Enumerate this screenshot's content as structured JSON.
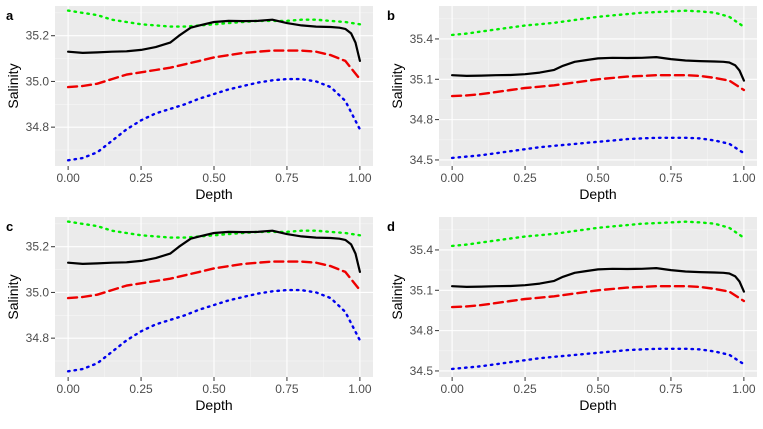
{
  "chart_data": [
    {
      "panel": "a",
      "type": "line",
      "xlabel": "Depth",
      "ylabel": "Salinity",
      "xlim": [
        -0.045,
        1.045
      ],
      "ylim": [
        34.63,
        35.33
      ],
      "xticks": [
        0.0,
        0.25,
        0.5,
        0.75,
        1.0
      ],
      "xtick_labels": [
        "0.00",
        "0.25",
        "0.50",
        "0.75",
        "1.00"
      ],
      "yticks": [
        34.8,
        35.0,
        35.2
      ],
      "ytick_labels": [
        "34.8",
        "35.0",
        "35.2"
      ],
      "series": [
        {
          "name": "upper",
          "color": "#00ee00",
          "dash": "dotted",
          "x": [
            0,
            0.05,
            0.1,
            0.15,
            0.2,
            0.25,
            0.3,
            0.35,
            0.4,
            0.45,
            0.5,
            0.55,
            0.6,
            0.65,
            0.7,
            0.75,
            0.8,
            0.85,
            0.9,
            0.95,
            1.0
          ],
          "y": [
            35.31,
            35.3,
            35.29,
            35.27,
            35.26,
            35.25,
            35.245,
            35.24,
            35.24,
            35.245,
            35.25,
            35.255,
            35.26,
            35.265,
            35.265,
            35.265,
            35.27,
            35.27,
            35.265,
            35.26,
            35.25
          ]
        },
        {
          "name": "estimate",
          "color": "#000000",
          "dash": "solid",
          "x": [
            0,
            0.05,
            0.1,
            0.15,
            0.2,
            0.25,
            0.3,
            0.35,
            0.38,
            0.42,
            0.45,
            0.5,
            0.55,
            0.6,
            0.65,
            0.7,
            0.75,
            0.8,
            0.85,
            0.9,
            0.93,
            0.95,
            0.97,
            0.985,
            1.0
          ],
          "y": [
            35.13,
            35.125,
            35.127,
            35.13,
            35.132,
            35.138,
            35.15,
            35.17,
            35.2,
            35.235,
            35.245,
            35.26,
            35.265,
            35.264,
            35.265,
            35.27,
            35.255,
            35.245,
            35.24,
            35.238,
            35.235,
            35.23,
            35.21,
            35.17,
            35.09
          ]
        },
        {
          "name": "mean",
          "color": "#ee0000",
          "dash": "dashed",
          "x": [
            0,
            0.05,
            0.1,
            0.15,
            0.2,
            0.25,
            0.3,
            0.35,
            0.4,
            0.45,
            0.5,
            0.55,
            0.6,
            0.65,
            0.7,
            0.75,
            0.8,
            0.85,
            0.9,
            0.95,
            1.0
          ],
          "y": [
            34.975,
            34.98,
            34.99,
            35.01,
            35.03,
            35.04,
            35.05,
            35.06,
            35.075,
            35.09,
            35.105,
            35.115,
            35.125,
            35.13,
            35.135,
            35.135,
            35.135,
            35.13,
            35.115,
            35.09,
            35.01
          ]
        },
        {
          "name": "lower",
          "color": "#0000ee",
          "dash": "dotted",
          "x": [
            0,
            0.05,
            0.1,
            0.15,
            0.2,
            0.25,
            0.3,
            0.35,
            0.4,
            0.45,
            0.5,
            0.55,
            0.6,
            0.65,
            0.7,
            0.75,
            0.8,
            0.85,
            0.9,
            0.95,
            1.0
          ],
          "y": [
            34.655,
            34.665,
            34.69,
            34.74,
            34.79,
            34.83,
            34.86,
            34.88,
            34.9,
            34.925,
            34.945,
            34.965,
            34.98,
            34.995,
            35.005,
            35.01,
            35.01,
            35.0,
            34.975,
            34.915,
            34.79
          ]
        }
      ]
    },
    {
      "panel": "b",
      "type": "line",
      "xlabel": "Depth",
      "ylabel": "Salinity",
      "xlim": [
        -0.045,
        1.045
      ],
      "ylim": [
        34.455,
        35.645
      ],
      "xticks": [
        0.0,
        0.25,
        0.5,
        0.75,
        1.0
      ],
      "xtick_labels": [
        "0.00",
        "0.25",
        "0.50",
        "0.75",
        "1.00"
      ],
      "yticks": [
        34.5,
        34.8,
        35.1,
        35.4
      ],
      "ytick_labels": [
        "34.5",
        "34.8",
        "35.1",
        "35.4"
      ],
      "series": [
        {
          "name": "upper",
          "color": "#00ee00",
          "dash": "dotted",
          "x": [
            0,
            0.05,
            0.1,
            0.15,
            0.2,
            0.25,
            0.3,
            0.35,
            0.4,
            0.45,
            0.5,
            0.55,
            0.6,
            0.65,
            0.7,
            0.75,
            0.8,
            0.85,
            0.9,
            0.95,
            1.0
          ],
          "y": [
            35.43,
            35.44,
            35.455,
            35.47,
            35.485,
            35.5,
            35.51,
            35.52,
            35.535,
            35.55,
            35.565,
            35.575,
            35.585,
            35.595,
            35.6,
            35.605,
            35.61,
            35.605,
            35.595,
            35.565,
            35.49
          ]
        },
        {
          "name": "estimate",
          "color": "#000000",
          "dash": "solid",
          "x": [
            0,
            0.05,
            0.1,
            0.15,
            0.2,
            0.25,
            0.3,
            0.35,
            0.38,
            0.42,
            0.45,
            0.5,
            0.55,
            0.6,
            0.65,
            0.7,
            0.75,
            0.8,
            0.85,
            0.9,
            0.93,
            0.95,
            0.97,
            0.985,
            1.0
          ],
          "y": [
            35.13,
            35.125,
            35.127,
            35.13,
            35.132,
            35.138,
            35.15,
            35.17,
            35.2,
            35.23,
            35.24,
            35.255,
            35.26,
            35.258,
            35.26,
            35.265,
            35.25,
            35.24,
            35.235,
            35.232,
            35.23,
            35.225,
            35.205,
            35.165,
            35.09
          ]
        },
        {
          "name": "mean",
          "color": "#ee0000",
          "dash": "dashed",
          "x": [
            0,
            0.05,
            0.1,
            0.15,
            0.2,
            0.25,
            0.3,
            0.35,
            0.4,
            0.45,
            0.5,
            0.55,
            0.6,
            0.65,
            0.7,
            0.75,
            0.8,
            0.85,
            0.9,
            0.95,
            1.0
          ],
          "y": [
            34.975,
            34.98,
            34.99,
            35.005,
            35.02,
            35.035,
            35.045,
            35.055,
            35.07,
            35.085,
            35.1,
            35.11,
            35.12,
            35.125,
            35.13,
            35.13,
            35.13,
            35.125,
            35.11,
            35.09,
            35.02
          ]
        },
        {
          "name": "lower",
          "color": "#0000ee",
          "dash": "dotted",
          "x": [
            0,
            0.05,
            0.1,
            0.15,
            0.2,
            0.25,
            0.3,
            0.35,
            0.4,
            0.45,
            0.5,
            0.55,
            0.6,
            0.65,
            0.7,
            0.75,
            0.8,
            0.85,
            0.9,
            0.95,
            1.0
          ],
          "y": [
            34.515,
            34.525,
            34.535,
            34.55,
            34.565,
            34.58,
            34.595,
            34.605,
            34.615,
            34.625,
            34.635,
            34.645,
            34.655,
            34.66,
            34.665,
            34.665,
            34.665,
            34.66,
            34.645,
            34.62,
            34.55
          ]
        }
      ]
    },
    {
      "panel": "c",
      "type": "line",
      "xlabel": "Depth",
      "ylabel": "Salinity",
      "xlim": [
        -0.045,
        1.045
      ],
      "ylim": [
        34.63,
        35.33
      ],
      "xticks": [
        0.0,
        0.25,
        0.5,
        0.75,
        1.0
      ],
      "xtick_labels": [
        "0.00",
        "0.25",
        "0.50",
        "0.75",
        "1.00"
      ],
      "yticks": [
        34.8,
        35.0,
        35.2
      ],
      "ytick_labels": [
        "34.8",
        "35.0",
        "35.2"
      ],
      "series": [
        {
          "name": "upper",
          "color": "#00ee00",
          "dash": "dotted",
          "x": [
            0,
            0.05,
            0.1,
            0.15,
            0.2,
            0.25,
            0.3,
            0.35,
            0.4,
            0.45,
            0.5,
            0.55,
            0.6,
            0.65,
            0.7,
            0.75,
            0.8,
            0.85,
            0.9,
            0.95,
            1.0
          ],
          "y": [
            35.31,
            35.3,
            35.29,
            35.27,
            35.26,
            35.25,
            35.245,
            35.24,
            35.24,
            35.245,
            35.25,
            35.255,
            35.26,
            35.265,
            35.265,
            35.265,
            35.27,
            35.27,
            35.265,
            35.26,
            35.25
          ]
        },
        {
          "name": "estimate",
          "color": "#000000",
          "dash": "solid",
          "x": [
            0,
            0.05,
            0.1,
            0.15,
            0.2,
            0.25,
            0.3,
            0.35,
            0.38,
            0.42,
            0.45,
            0.5,
            0.55,
            0.6,
            0.65,
            0.7,
            0.75,
            0.8,
            0.85,
            0.9,
            0.93,
            0.95,
            0.97,
            0.985,
            1.0
          ],
          "y": [
            35.13,
            35.125,
            35.127,
            35.13,
            35.132,
            35.138,
            35.15,
            35.17,
            35.2,
            35.235,
            35.245,
            35.26,
            35.265,
            35.264,
            35.265,
            35.27,
            35.255,
            35.245,
            35.24,
            35.238,
            35.235,
            35.23,
            35.21,
            35.17,
            35.09
          ]
        },
        {
          "name": "mean",
          "color": "#ee0000",
          "dash": "dashed",
          "x": [
            0,
            0.05,
            0.1,
            0.15,
            0.2,
            0.25,
            0.3,
            0.35,
            0.4,
            0.45,
            0.5,
            0.55,
            0.6,
            0.65,
            0.7,
            0.75,
            0.8,
            0.85,
            0.9,
            0.95,
            1.0
          ],
          "y": [
            34.975,
            34.98,
            34.99,
            35.01,
            35.03,
            35.04,
            35.05,
            35.06,
            35.075,
            35.09,
            35.105,
            35.115,
            35.125,
            35.13,
            35.135,
            35.135,
            35.135,
            35.13,
            35.115,
            35.09,
            35.01
          ]
        },
        {
          "name": "lower",
          "color": "#0000ee",
          "dash": "dotted",
          "x": [
            0,
            0.05,
            0.1,
            0.15,
            0.2,
            0.25,
            0.3,
            0.35,
            0.4,
            0.45,
            0.5,
            0.55,
            0.6,
            0.65,
            0.7,
            0.75,
            0.8,
            0.85,
            0.9,
            0.95,
            1.0
          ],
          "y": [
            34.655,
            34.665,
            34.69,
            34.74,
            34.79,
            34.83,
            34.86,
            34.88,
            34.9,
            34.925,
            34.945,
            34.965,
            34.98,
            34.995,
            35.005,
            35.01,
            35.01,
            35.0,
            34.975,
            34.915,
            34.79
          ]
        }
      ]
    },
    {
      "panel": "d",
      "type": "line",
      "xlabel": "Depth",
      "ylabel": "Salinity",
      "xlim": [
        -0.045,
        1.045
      ],
      "ylim": [
        34.455,
        35.645
      ],
      "xticks": [
        0.0,
        0.25,
        0.5,
        0.75,
        1.0
      ],
      "xtick_labels": [
        "0.00",
        "0.25",
        "0.50",
        "0.75",
        "1.00"
      ],
      "yticks": [
        34.5,
        34.8,
        35.1,
        35.4
      ],
      "ytick_labels": [
        "34.5",
        "34.8",
        "35.1",
        "35.4"
      ],
      "series": [
        {
          "name": "upper",
          "color": "#00ee00",
          "dash": "dotted",
          "x": [
            0,
            0.05,
            0.1,
            0.15,
            0.2,
            0.25,
            0.3,
            0.35,
            0.4,
            0.45,
            0.5,
            0.55,
            0.6,
            0.65,
            0.7,
            0.75,
            0.8,
            0.85,
            0.9,
            0.95,
            1.0
          ],
          "y": [
            35.43,
            35.44,
            35.455,
            35.47,
            35.485,
            35.5,
            35.51,
            35.52,
            35.535,
            35.55,
            35.565,
            35.575,
            35.585,
            35.595,
            35.6,
            35.605,
            35.61,
            35.605,
            35.595,
            35.565,
            35.49
          ]
        },
        {
          "name": "estimate",
          "color": "#000000",
          "dash": "solid",
          "x": [
            0,
            0.05,
            0.1,
            0.15,
            0.2,
            0.25,
            0.3,
            0.35,
            0.38,
            0.42,
            0.45,
            0.5,
            0.55,
            0.6,
            0.65,
            0.7,
            0.75,
            0.8,
            0.85,
            0.9,
            0.93,
            0.95,
            0.97,
            0.985,
            1.0
          ],
          "y": [
            35.13,
            35.125,
            35.127,
            35.13,
            35.132,
            35.138,
            35.15,
            35.17,
            35.2,
            35.23,
            35.24,
            35.255,
            35.26,
            35.258,
            35.26,
            35.265,
            35.25,
            35.24,
            35.235,
            35.232,
            35.23,
            35.225,
            35.205,
            35.165,
            35.09
          ]
        },
        {
          "name": "mean",
          "color": "#ee0000",
          "dash": "dashed",
          "x": [
            0,
            0.05,
            0.1,
            0.15,
            0.2,
            0.25,
            0.3,
            0.35,
            0.4,
            0.45,
            0.5,
            0.55,
            0.6,
            0.65,
            0.7,
            0.75,
            0.8,
            0.85,
            0.9,
            0.95,
            1.0
          ],
          "y": [
            34.975,
            34.98,
            34.99,
            35.005,
            35.02,
            35.035,
            35.045,
            35.055,
            35.07,
            35.085,
            35.1,
            35.11,
            35.12,
            35.125,
            35.13,
            35.13,
            35.13,
            35.125,
            35.11,
            35.09,
            35.02
          ]
        },
        {
          "name": "lower",
          "color": "#0000ee",
          "dash": "dotted",
          "x": [
            0,
            0.05,
            0.1,
            0.15,
            0.2,
            0.25,
            0.3,
            0.35,
            0.4,
            0.45,
            0.5,
            0.55,
            0.6,
            0.65,
            0.7,
            0.75,
            0.8,
            0.85,
            0.9,
            0.95,
            1.0
          ],
          "y": [
            34.515,
            34.525,
            34.535,
            34.55,
            34.565,
            34.58,
            34.595,
            34.605,
            34.615,
            34.625,
            34.635,
            34.645,
            34.655,
            34.66,
            34.665,
            34.665,
            34.665,
            34.66,
            34.645,
            34.62,
            34.55
          ]
        }
      ]
    }
  ]
}
